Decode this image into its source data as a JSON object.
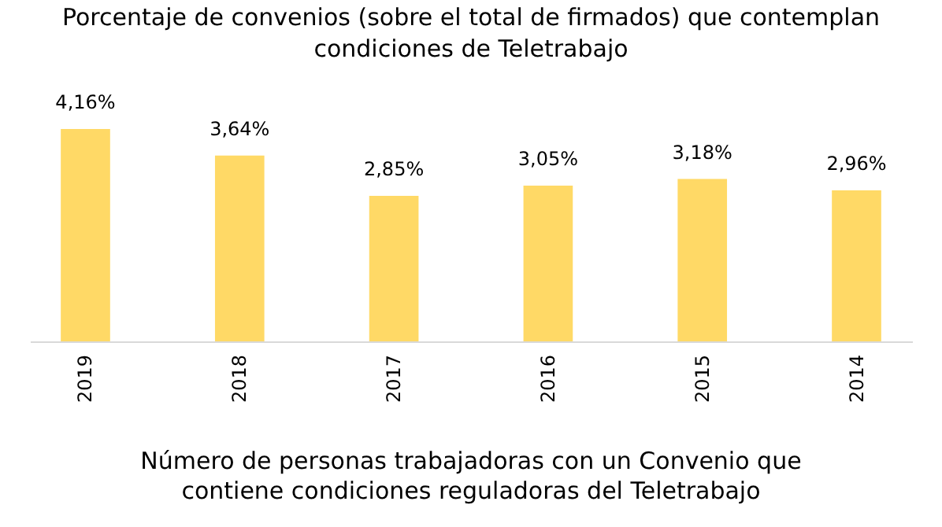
{
  "chart_data": {
    "type": "bar",
    "title": "Porcentaje de convenios (sobre el total de firmados) que contemplan condiciones de Teletrabajo",
    "categories": [
      "2019",
      "2018",
      "2017",
      "2016",
      "2015",
      "2014"
    ],
    "values": [
      4.16,
      3.64,
      2.85,
      3.05,
      3.18,
      2.96
    ],
    "value_labels": [
      "4,16%",
      "3,64%",
      "2,85%",
      "3,05%",
      "3,18%",
      "2,96%"
    ],
    "color": "#ffd966",
    "annotations": [
      "Número de personas trabajadoras con un Convenio que contiene condiciones reguladoras del Teletrabajo"
    ]
  }
}
